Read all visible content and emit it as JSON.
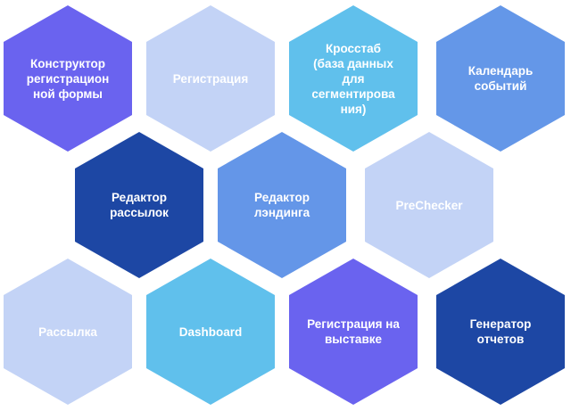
{
  "colors": {
    "violet": "#6366f1",
    "lavender": "#c2d4f5",
    "sky": "#63c0ec",
    "cornflower": "#6497e8",
    "navy": "#1a46a6",
    "text": "#ffffff"
  },
  "tiles": [
    {
      "name": "hex-constructor",
      "label": "Конструктор\nрегистрацион\nной формы",
      "color": "#6a63ef"
    },
    {
      "name": "hex-registration",
      "label": "Регистрация",
      "color": "#c3d3f6"
    },
    {
      "name": "hex-crosstab",
      "label": "Кросстаб\n(база данных\nдля\nсегментирова\nния)",
      "color": "#60c0ec"
    },
    {
      "name": "hex-calendar",
      "label": "Календарь\nсобытий",
      "color": "#6497e8"
    },
    {
      "name": "hex-mail-editor",
      "label": "Редактор\nрассылок",
      "color": "#1d47a4"
    },
    {
      "name": "hex-landing-editor",
      "label": "Редактор\nлэндинга",
      "color": "#6496e8"
    },
    {
      "name": "hex-prechecker",
      "label": "PreChecker",
      "color": "#c3d3f6"
    },
    {
      "name": "hex-mailing",
      "label": "Рассылка",
      "color": "#c3d3f6"
    },
    {
      "name": "hex-dashboard",
      "label": "Dashboard",
      "color": "#60c0ec"
    },
    {
      "name": "hex-expo-registration",
      "label": "Регистрация на\nвыставке",
      "color": "#6a63ef"
    },
    {
      "name": "hex-report-generator",
      "label": "Генератор\nотчетов",
      "color": "#1d47a4"
    }
  ]
}
